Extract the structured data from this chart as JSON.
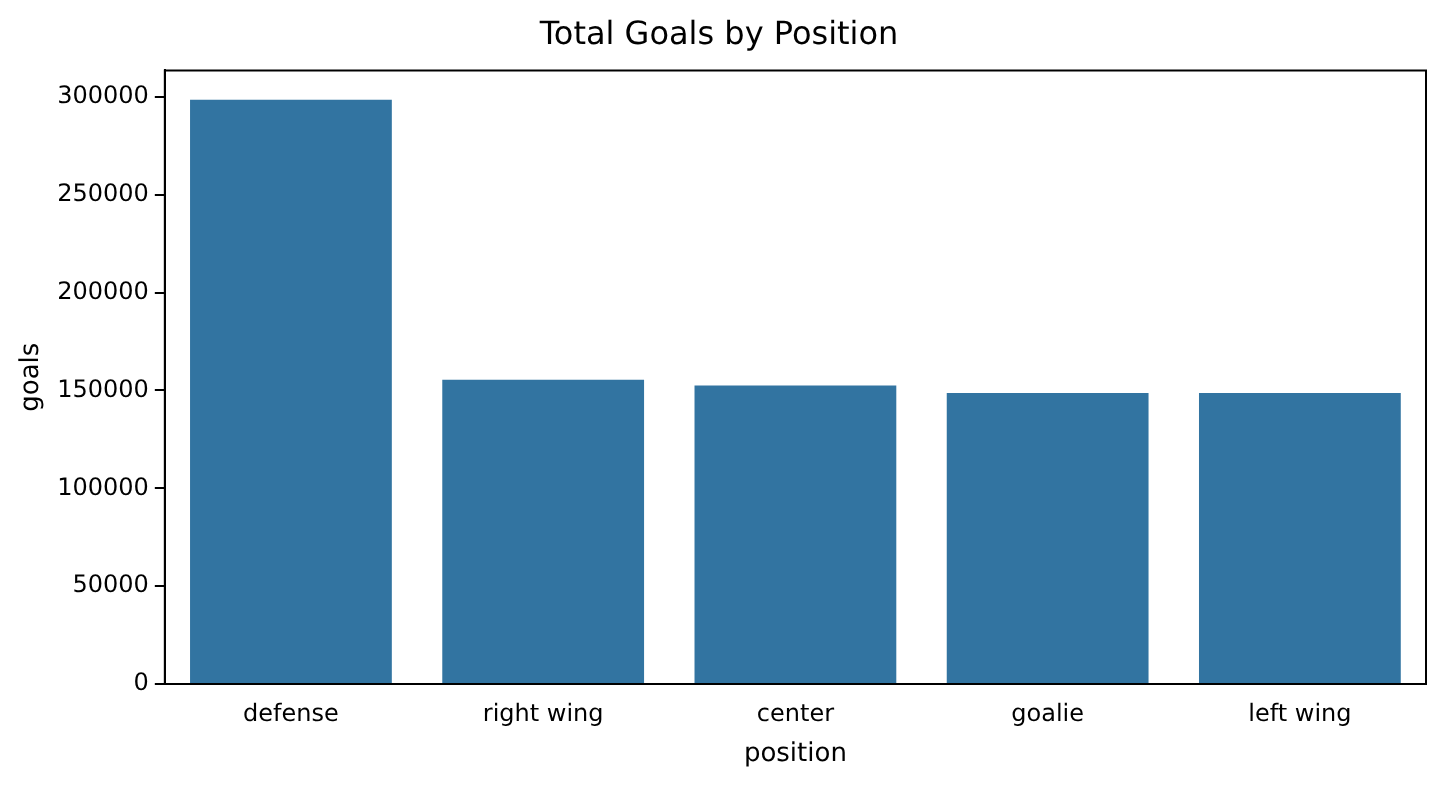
{
  "chart_data": {
    "type": "bar",
    "title": "Total Goals by Position",
    "xlabel": "position",
    "ylabel": "goals",
    "categories": [
      "defense",
      "right wing",
      "center",
      "goalie",
      "left wing"
    ],
    "values": [
      298500,
      155500,
      152500,
      148700,
      148700
    ],
    "color": "#3274a1",
    "ylim": [
      0,
      313500
    ],
    "yticks": [
      0,
      50000,
      100000,
      150000,
      200000,
      250000,
      300000
    ],
    "grid": false,
    "legend": false
  }
}
